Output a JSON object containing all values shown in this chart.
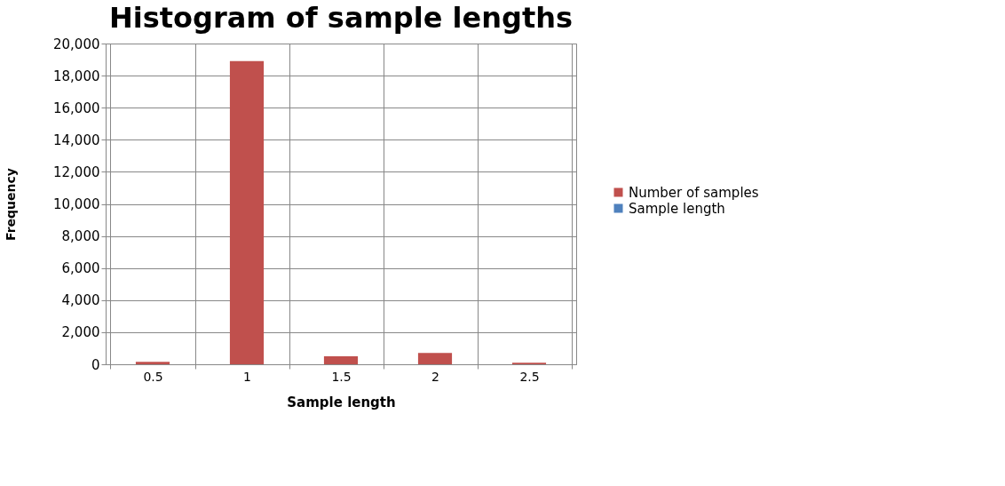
{
  "chart_data": {
    "type": "bar",
    "title": "Histogram of sample lengths",
    "xlabel": "Sample length",
    "ylabel": "Frequency",
    "categories": [
      "0.5",
      "1",
      "1.5",
      "2",
      "2.5"
    ],
    "series": [
      {
        "name": "Number of samples",
        "color": "#c0504d",
        "values": [
          150,
          18900,
          500,
          700,
          100
        ]
      },
      {
        "name": "Sample length",
        "color": "#4f81bd",
        "values": [
          null,
          null,
          null,
          null,
          null
        ]
      }
    ],
    "ylim": [
      0,
      20000
    ],
    "yticks": [
      0,
      {
        "value": 2000,
        "label": "2,000"
      },
      {
        "value": 4000,
        "label": "4,000"
      },
      {
        "value": 6000,
        "label": "6,000"
      },
      {
        "value": 8000,
        "label": "8,000"
      },
      {
        "value": 10000,
        "label": "10,000"
      },
      {
        "value": 12000,
        "label": "12,000"
      },
      {
        "value": 14000,
        "label": "14,000"
      },
      {
        "value": 16000,
        "label": "16,000"
      },
      {
        "value": 18000,
        "label": "18,000"
      },
      {
        "value": 20000,
        "label": "20,000"
      }
    ],
    "grid": true,
    "legend": "right"
  }
}
